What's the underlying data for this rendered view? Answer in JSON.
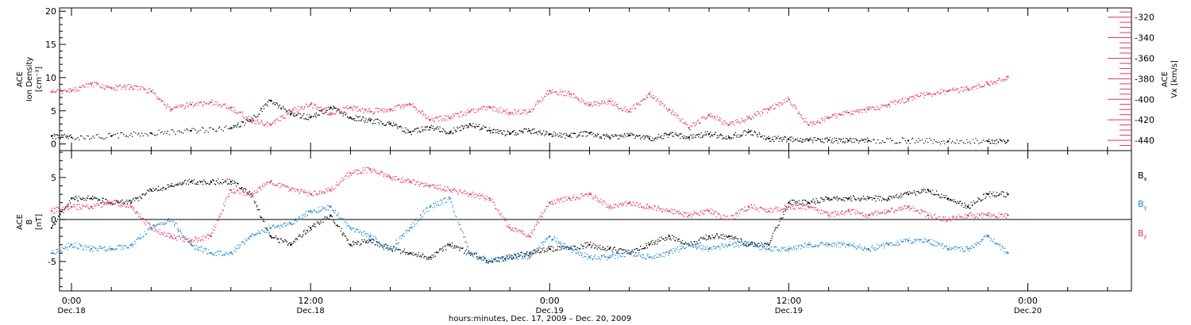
{
  "chart_data": [
    {
      "type": "scatter",
      "panel": "top",
      "ylabel_left": [
        "ACE",
        "Ion Density",
        "[cm⁻³]"
      ],
      "ylabel_right": [
        "ACE",
        "Vx [km/s]"
      ],
      "ylim_left": [
        -1,
        20.5
      ],
      "ylim_right": [
        -450,
        -311
      ],
      "yticks_left": [
        0,
        5,
        10,
        15,
        20
      ],
      "yticks_right": [
        -320,
        -340,
        -360,
        -380,
        -400,
        -420,
        -440
      ],
      "colors": {
        "density": "#000000",
        "vx": "#e8336a"
      },
      "series": [
        {
          "name": "Ion Density",
          "color": "#000000",
          "axis": "left",
          "x": [
            -1,
            0,
            2,
            4,
            6,
            8,
            9,
            10,
            11,
            12,
            13,
            14,
            15,
            16,
            17,
            18,
            19,
            20,
            21,
            22,
            23,
            24,
            25,
            26,
            27,
            28,
            29,
            30,
            31,
            32,
            33,
            34,
            35,
            36,
            37,
            38,
            39,
            40,
            42,
            44,
            46,
            47
          ],
          "y": [
            1.2,
            1.0,
            1.2,
            1.6,
            2.0,
            2.4,
            3.5,
            6.5,
            4.5,
            4.0,
            5.5,
            4.0,
            3.5,
            3.0,
            1.8,
            2.5,
            1.8,
            3.0,
            2.0,
            1.5,
            2.0,
            1.5,
            1.2,
            1.6,
            1.0,
            1.3,
            0.8,
            1.4,
            1.0,
            1.5,
            1.0,
            1.8,
            0.8,
            0.7,
            0.6,
            0.6,
            0.5,
            0.5,
            0.5,
            0.4,
            0.4,
            0.5
          ]
        },
        {
          "name": "Vx",
          "color": "#e8336a",
          "axis": "right",
          "x": [
            -1,
            0,
            1,
            2,
            3,
            4,
            5,
            6,
            7,
            8,
            9,
            10,
            11,
            12,
            13,
            14,
            15,
            16,
            17,
            18,
            19,
            20,
            21,
            22,
            23,
            24,
            25,
            26,
            27,
            28,
            29,
            30,
            31,
            32,
            33,
            34,
            35,
            36,
            37,
            38,
            39,
            40,
            41,
            42,
            43,
            44,
            45,
            46,
            47
          ],
          "y": [
            -393,
            -392,
            -385,
            -389,
            -388,
            -392,
            -410,
            -405,
            -403,
            -408,
            -420,
            -425,
            -412,
            -405,
            -415,
            -408,
            -412,
            -410,
            -405,
            -420,
            -418,
            -412,
            -408,
            -413,
            -412,
            -392,
            -395,
            -405,
            -402,
            -412,
            -395,
            -410,
            -428,
            -415,
            -425,
            -418,
            -410,
            -400,
            -425,
            -418,
            -413,
            -410,
            -405,
            -400,
            -395,
            -392,
            -390,
            -385,
            -378
          ]
        }
      ]
    },
    {
      "type": "scatter",
      "panel": "bottom",
      "ylabel": [
        "ACE",
        "B",
        "[nT]"
      ],
      "ylim": [
        -8.5,
        8.2
      ],
      "yticks": [
        -5,
        0,
        5
      ],
      "zero_line": true,
      "legend_position": "right",
      "colors": {
        "bx": "#000000",
        "by": "#1a86d6",
        "bz": "#e8336a"
      },
      "series": [
        {
          "name": "Bx",
          "legend_label": "B",
          "legend_sub": "x",
          "color": "#000000",
          "x": [
            -1,
            0,
            1,
            2,
            3,
            4,
            5,
            6,
            7,
            8,
            9,
            10,
            11,
            12,
            13,
            14,
            15,
            16,
            17,
            18,
            19,
            20,
            21,
            22,
            23,
            24,
            25,
            26,
            27,
            28,
            29,
            30,
            31,
            32,
            33,
            34,
            35,
            36,
            37,
            38,
            39,
            40,
            41,
            42,
            43,
            44,
            45,
            46,
            47
          ],
          "y": [
            -1,
            2.5,
            2.5,
            2.0,
            2.0,
            3.5,
            4.0,
            4.5,
            4.5,
            4.5,
            3.0,
            -2.0,
            -3.0,
            -1.0,
            0.5,
            -3.0,
            -2.5,
            -3.5,
            -4.0,
            -4.5,
            -3.0,
            -4.0,
            -5.0,
            -4.5,
            -4.0,
            -3.5,
            -3.5,
            -3.0,
            -3.5,
            -4.0,
            -3.0,
            -2.0,
            -3.0,
            -2.0,
            -2.0,
            -3.0,
            -3.0,
            2.0,
            2.0,
            2.5,
            2.5,
            2.5,
            2.5,
            3.0,
            3.5,
            2.5,
            1.5,
            3.0,
            3.0
          ]
        },
        {
          "name": "By",
          "legend_label": "B",
          "legend_sub": "y",
          "color": "#1a86d6",
          "x": [
            -1,
            0,
            1,
            2,
            3,
            4,
            5,
            6,
            7,
            8,
            9,
            10,
            11,
            12,
            13,
            14,
            15,
            16,
            17,
            18,
            19,
            20,
            21,
            22,
            23,
            24,
            25,
            26,
            27,
            28,
            29,
            30,
            31,
            32,
            33,
            34,
            35,
            36,
            37,
            38,
            39,
            40,
            41,
            42,
            43,
            44,
            45,
            46,
            47
          ],
          "y": [
            -4,
            -3,
            -3.5,
            -3.5,
            -3.0,
            -1.0,
            0.0,
            -3.0,
            -4.0,
            -4.0,
            -2.0,
            -1.0,
            -0.5,
            1.0,
            1.5,
            -1.0,
            -2.0,
            -3.5,
            -1.0,
            1.5,
            2.5,
            -4.0,
            -5.0,
            -4.5,
            -4.5,
            -2.0,
            -3.5,
            -4.5,
            -4.5,
            -4.0,
            -4.5,
            -4.0,
            -3.0,
            -3.5,
            -3.0,
            -3.0,
            -3.5,
            -3.5,
            -3.0,
            -3.0,
            -3.0,
            -3.5,
            -3.0,
            -2.5,
            -2.5,
            -3.5,
            -3.5,
            -2.0,
            -4.0
          ]
        },
        {
          "name": "Bz",
          "legend_label": "B",
          "legend_sub": "z",
          "color": "#e8336a",
          "x": [
            -1,
            0,
            1,
            2,
            3,
            4,
            5,
            6,
            7,
            8,
            9,
            10,
            11,
            12,
            13,
            14,
            15,
            16,
            17,
            18,
            19,
            20,
            21,
            22,
            23,
            24,
            25,
            26,
            27,
            28,
            29,
            30,
            31,
            32,
            33,
            34,
            35,
            36,
            37,
            38,
            39,
            40,
            41,
            42,
            43,
            44,
            45,
            46,
            47
          ],
          "y": [
            1.0,
            1.5,
            1.5,
            2.0,
            1.5,
            -1.0,
            -2.0,
            -2.5,
            -2.0,
            3.5,
            3.0,
            4.5,
            3.5,
            3.0,
            3.5,
            5.5,
            6.0,
            5.0,
            4.5,
            4.0,
            3.5,
            3.0,
            2.5,
            -1.0,
            -2.0,
            2.0,
            2.5,
            3.0,
            1.5,
            2.0,
            1.5,
            1.0,
            0.5,
            1.0,
            0.0,
            1.5,
            1.0,
            1.5,
            1.5,
            0.5,
            1.0,
            0.5,
            1.0,
            1.5,
            0.5,
            0.0,
            0.5,
            0.5,
            0.5
          ]
        }
      ]
    }
  ],
  "x_axis": {
    "ticks": [
      {
        "x": 0,
        "time": "0:00",
        "date": "Dec.18"
      },
      {
        "x": 12,
        "time": "12:00",
        "date": "Dec.18"
      },
      {
        "x": 24,
        "time": "0:00",
        "date": "Dec.19"
      },
      {
        "x": 36,
        "time": "12:00",
        "date": "Dec.19"
      },
      {
        "x": 48,
        "time": "0:00",
        "date": "Dec.20"
      }
    ],
    "xlim": [
      -0.6,
      53.2
    ],
    "label": "hours:minutes, Dec. 17, 2009 – Dec. 20, 2009"
  }
}
